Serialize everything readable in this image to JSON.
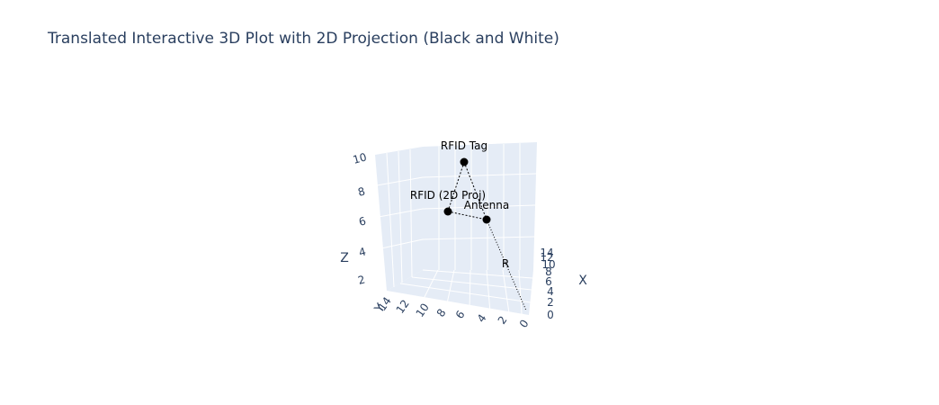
{
  "chart_data": {
    "type": "scatter",
    "title": "Translated Interactive 3D Plot with 2D Projection (Black and White)",
    "axes": {
      "x": {
        "label": "X",
        "ticks": [
          "0",
          "2",
          "4",
          "6",
          "8",
          "10",
          "12",
          "14"
        ]
      },
      "y": {
        "label": "Y",
        "ticks": [
          "0",
          "2",
          "4",
          "6",
          "8",
          "10",
          "12",
          "14"
        ]
      },
      "z": {
        "label": "Z",
        "ticks": [
          "2",
          "4",
          "6",
          "8",
          "10"
        ]
      }
    },
    "points": [
      {
        "label": "RFID Tag",
        "color": "#000000"
      },
      {
        "label": "RFID (2D Proj)",
        "color": "#000000"
      },
      {
        "label": "Antenna",
        "color": "#000000"
      }
    ],
    "annotations": [
      {
        "text": "R"
      }
    ],
    "scene_background": "#e5ecf6",
    "grid_color": "#ffffff",
    "text_color": "#2a3f5f"
  }
}
